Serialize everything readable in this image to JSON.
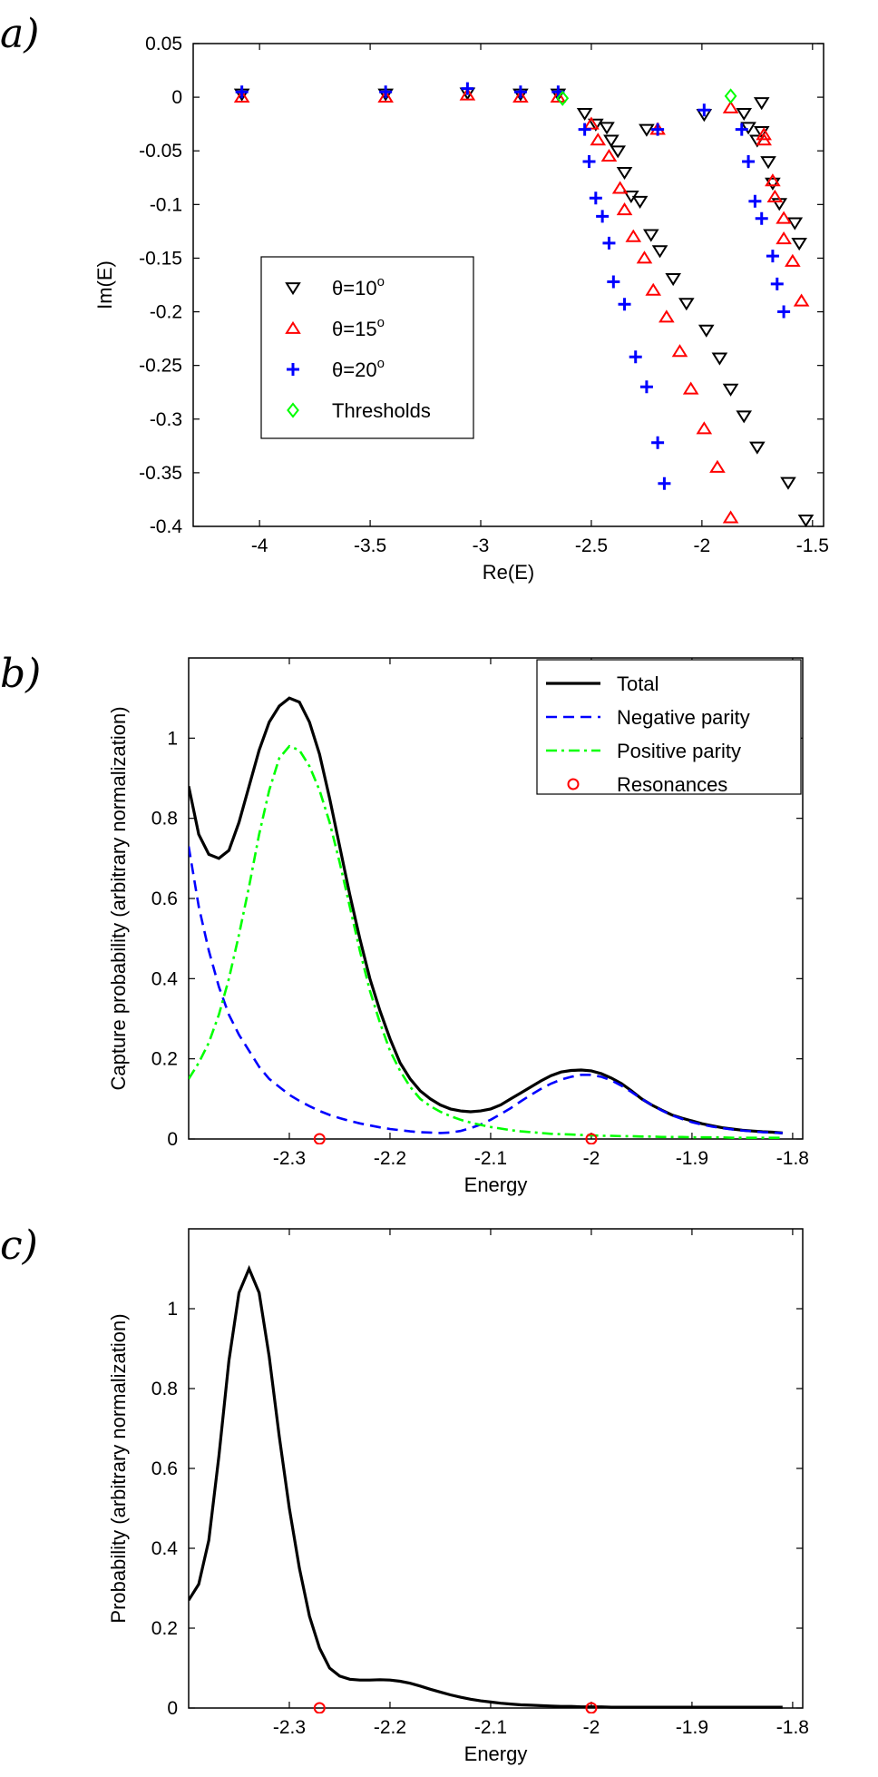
{
  "chart_data": [
    {
      "panel": "a)",
      "type": "scatter",
      "xlabel": "Re(E)",
      "ylabel": "Im(E)",
      "xlim": [
        -4.3,
        -1.45
      ],
      "ylim": [
        -0.4,
        0.05
      ],
      "xticks": [
        -4,
        -3.5,
        -3,
        -2.5,
        -2,
        -1.5
      ],
      "yticks": [
        0.05,
        0,
        -0.05,
        -0.1,
        -0.15,
        -0.2,
        -0.25,
        -0.3,
        -0.35,
        -0.4
      ],
      "grid": false,
      "legend_position": "lower-left",
      "series": [
        {
          "name_prefix": "θ=10",
          "name_sup": "o",
          "marker": "triangle-down",
          "color": "#000000",
          "points": [
            [
              -4.08,
              0.003
            ],
            [
              -3.43,
              0.003
            ],
            [
              -3.06,
              0.004
            ],
            [
              -2.82,
              0.003
            ],
            [
              -2.65,
              0.003
            ],
            [
              -2.53,
              -0.015
            ],
            [
              -2.48,
              -0.025
            ],
            [
              -2.43,
              -0.028
            ],
            [
              -2.41,
              -0.04
            ],
            [
              -2.38,
              -0.05
            ],
            [
              -2.35,
              -0.07
            ],
            [
              -2.32,
              -0.092
            ],
            [
              -2.28,
              -0.097
            ],
            [
              -2.25,
              -0.03
            ],
            [
              -2.23,
              -0.128
            ],
            [
              -2.19,
              -0.143
            ],
            [
              -2.13,
              -0.169
            ],
            [
              -2.07,
              -0.192
            ],
            [
              -1.99,
              -0.016
            ],
            [
              -1.98,
              -0.217
            ],
            [
              -1.92,
              -0.243
            ],
            [
              -1.87,
              -0.272
            ],
            [
              -1.81,
              -0.297
            ],
            [
              -1.81,
              -0.015
            ],
            [
              -1.79,
              -0.028
            ],
            [
              -1.75,
              -0.326
            ],
            [
              -1.75,
              -0.04
            ],
            [
              -1.73,
              -0.032
            ],
            [
              -1.73,
              -0.005
            ],
            [
              -1.7,
              -0.06
            ],
            [
              -1.68,
              -0.08
            ],
            [
              -1.65,
              -0.099
            ],
            [
              -1.61,
              -0.359
            ],
            [
              -1.58,
              -0.117
            ],
            [
              -1.56,
              -0.136
            ],
            [
              -1.53,
              -0.394
            ]
          ]
        },
        {
          "name_prefix": "θ=15",
          "name_sup": "o",
          "marker": "triangle-up",
          "color": "#ff0000",
          "points": [
            [
              -4.08,
              0.0
            ],
            [
              -3.43,
              0.0
            ],
            [
              -3.06,
              0.002
            ],
            [
              -2.82,
              0.0
            ],
            [
              -2.65,
              0.0
            ],
            [
              -2.5,
              -0.025
            ],
            [
              -2.47,
              -0.04
            ],
            [
              -2.42,
              -0.055
            ],
            [
              -2.37,
              -0.085
            ],
            [
              -2.35,
              -0.105
            ],
            [
              -2.31,
              -0.13
            ],
            [
              -2.26,
              -0.15
            ],
            [
              -2.22,
              -0.18
            ],
            [
              -2.2,
              -0.03
            ],
            [
              -2.16,
              -0.205
            ],
            [
              -2.1,
              -0.237
            ],
            [
              -2.05,
              -0.272
            ],
            [
              -1.99,
              -0.309
            ],
            [
              -1.93,
              -0.345
            ],
            [
              -1.87,
              -0.392
            ],
            [
              -1.87,
              -0.01
            ],
            [
              -1.72,
              -0.035
            ],
            [
              -1.72,
              -0.04
            ],
            [
              -1.68,
              -0.078
            ],
            [
              -1.67,
              -0.093
            ],
            [
              -1.63,
              -0.113
            ],
            [
              -1.63,
              -0.132
            ],
            [
              -1.59,
              -0.153
            ],
            [
              -1.55,
              -0.19
            ]
          ]
        },
        {
          "name_prefix": "θ=20",
          "name_sup": "o",
          "marker": "plus",
          "color": "#0000ff",
          "points": [
            [
              -4.08,
              0.005
            ],
            [
              -3.43,
              0.005
            ],
            [
              -3.06,
              0.008
            ],
            [
              -2.82,
              0.005
            ],
            [
              -2.65,
              0.005
            ],
            [
              -2.53,
              -0.03
            ],
            [
              -2.51,
              -0.06
            ],
            [
              -2.48,
              -0.094
            ],
            [
              -2.45,
              -0.111
            ],
            [
              -2.42,
              -0.136
            ],
            [
              -2.4,
              -0.172
            ],
            [
              -2.35,
              -0.193
            ],
            [
              -2.3,
              -0.242
            ],
            [
              -2.25,
              -0.27
            ],
            [
              -2.2,
              -0.322
            ],
            [
              -2.17,
              -0.36
            ],
            [
              -2.2,
              -0.03
            ],
            [
              -1.99,
              -0.012
            ],
            [
              -1.82,
              -0.03
            ],
            [
              -1.79,
              -0.06
            ],
            [
              -1.76,
              -0.097
            ],
            [
              -1.73,
              -0.113
            ],
            [
              -1.68,
              -0.148
            ],
            [
              -1.66,
              -0.174
            ],
            [
              -1.63,
              -0.2
            ]
          ]
        },
        {
          "name": "Thresholds",
          "marker": "diamond",
          "color": "#00ff00",
          "points": [
            [
              -2.63,
              -0.001
            ],
            [
              -1.87,
              0.001
            ]
          ]
        }
      ]
    },
    {
      "panel": "b)",
      "type": "line",
      "xlabel": "Energy",
      "ylabel": "Capture probability (arbitrary normalization)",
      "xlim": [
        -2.4,
        -1.79
      ],
      "ylim": [
        0,
        1.2
      ],
      "xticks": [
        -2.3,
        -2.2,
        -2.1,
        -2.0,
        -1.9,
        -1.8
      ],
      "xtick_labels": [
        "-2.3",
        "-2.2",
        "-2.1",
        "-2",
        "-1.9",
        "-1.8"
      ],
      "yticks": [
        0,
        0.2,
        0.4,
        0.6,
        0.8,
        1
      ],
      "ytick_labels": [
        "0",
        "0.2",
        "0.4",
        "0.6",
        "0.8",
        "1"
      ],
      "grid": false,
      "legend_position": "top-right",
      "series": [
        {
          "name": "Total",
          "style": "solid",
          "color": "#000000",
          "x": [
            -2.4,
            -2.39,
            -2.38,
            -2.37,
            -2.36,
            -2.35,
            -2.34,
            -2.33,
            -2.32,
            -2.31,
            -2.3,
            -2.29,
            -2.28,
            -2.27,
            -2.26,
            -2.25,
            -2.24,
            -2.23,
            -2.22,
            -2.21,
            -2.2,
            -2.19,
            -2.18,
            -2.17,
            -2.16,
            -2.15,
            -2.14,
            -2.13,
            -2.12,
            -2.11,
            -2.1,
            -2.09,
            -2.08,
            -2.07,
            -2.06,
            -2.05,
            -2.04,
            -2.03,
            -2.02,
            -2.01,
            -2.0,
            -1.99,
            -1.98,
            -1.97,
            -1.96,
            -1.95,
            -1.94,
            -1.93,
            -1.92,
            -1.91,
            -1.9,
            -1.89,
            -1.88,
            -1.87,
            -1.86,
            -1.85,
            -1.84,
            -1.83,
            -1.82,
            -1.81
          ],
          "y": [
            0.88,
            0.76,
            0.71,
            0.7,
            0.72,
            0.79,
            0.88,
            0.97,
            1.04,
            1.08,
            1.1,
            1.09,
            1.04,
            0.96,
            0.85,
            0.73,
            0.61,
            0.5,
            0.4,
            0.32,
            0.25,
            0.19,
            0.15,
            0.12,
            0.1,
            0.085,
            0.075,
            0.07,
            0.068,
            0.07,
            0.075,
            0.085,
            0.1,
            0.115,
            0.13,
            0.145,
            0.158,
            0.167,
            0.171,
            0.172,
            0.17,
            0.163,
            0.152,
            0.138,
            0.12,
            0.1,
            0.085,
            0.072,
            0.06,
            0.052,
            0.045,
            0.038,
            0.033,
            0.028,
            0.025,
            0.022,
            0.02,
            0.018,
            0.017,
            0.015
          ]
        },
        {
          "name": "Negative parity",
          "style": "dashed",
          "color": "#0000ff",
          "x": [
            -2.4,
            -2.39,
            -2.38,
            -2.37,
            -2.36,
            -2.35,
            -2.34,
            -2.33,
            -2.32,
            -2.31,
            -2.3,
            -2.29,
            -2.28,
            -2.27,
            -2.26,
            -2.25,
            -2.24,
            -2.23,
            -2.22,
            -2.21,
            -2.2,
            -2.19,
            -2.18,
            -2.17,
            -2.16,
            -2.15,
            -2.14,
            -2.13,
            -2.12,
            -2.11,
            -2.1,
            -2.09,
            -2.08,
            -2.07,
            -2.06,
            -2.05,
            -2.04,
            -2.03,
            -2.02,
            -2.01,
            -2.0,
            -1.99,
            -1.98,
            -1.97,
            -1.96,
            -1.95,
            -1.94,
            -1.93,
            -1.92,
            -1.91,
            -1.9,
            -1.89,
            -1.88,
            -1.87,
            -1.86,
            -1.85,
            -1.84,
            -1.83,
            -1.82,
            -1.81
          ],
          "y": [
            0.73,
            0.58,
            0.47,
            0.38,
            0.31,
            0.26,
            0.22,
            0.18,
            0.15,
            0.13,
            0.11,
            0.095,
            0.082,
            0.07,
            0.06,
            0.052,
            0.045,
            0.039,
            0.034,
            0.029,
            0.025,
            0.022,
            0.019,
            0.017,
            0.016,
            0.015,
            0.016,
            0.02,
            0.027,
            0.036,
            0.048,
            0.062,
            0.077,
            0.094,
            0.11,
            0.125,
            0.138,
            0.148,
            0.155,
            0.16,
            0.16,
            0.155,
            0.146,
            0.133,
            0.117,
            0.1,
            0.085,
            0.071,
            0.059,
            0.05,
            0.042,
            0.036,
            0.031,
            0.027,
            0.024,
            0.021,
            0.019,
            0.017,
            0.016,
            0.015
          ]
        },
        {
          "name": "Positive parity",
          "style": "dashdot",
          "color": "#00ff00",
          "x": [
            -2.4,
            -2.39,
            -2.38,
            -2.37,
            -2.36,
            -2.35,
            -2.34,
            -2.33,
            -2.32,
            -2.31,
            -2.3,
            -2.29,
            -2.28,
            -2.27,
            -2.26,
            -2.25,
            -2.24,
            -2.23,
            -2.22,
            -2.21,
            -2.2,
            -2.19,
            -2.18,
            -2.17,
            -2.16,
            -2.15,
            -2.14,
            -2.13,
            -2.12,
            -2.11,
            -2.1,
            -2.09,
            -2.08,
            -2.07,
            -2.06,
            -2.05,
            -2.04,
            -2.03,
            -2.02,
            -2.01,
            -2.0,
            -1.99,
            -1.98,
            -1.97,
            -1.96,
            -1.95,
            -1.94,
            -1.93,
            -1.92,
            -1.91,
            -1.9,
            -1.89,
            -1.88,
            -1.87,
            -1.86,
            -1.85,
            -1.84,
            -1.83,
            -1.82,
            -1.81
          ],
          "y": [
            0.15,
            0.19,
            0.24,
            0.31,
            0.4,
            0.51,
            0.63,
            0.76,
            0.87,
            0.95,
            0.98,
            0.97,
            0.93,
            0.87,
            0.79,
            0.69,
            0.58,
            0.47,
            0.37,
            0.29,
            0.22,
            0.17,
            0.13,
            0.1,
            0.082,
            0.068,
            0.057,
            0.048,
            0.041,
            0.035,
            0.03,
            0.026,
            0.022,
            0.019,
            0.017,
            0.015,
            0.013,
            0.012,
            0.011,
            0.01,
            0.009,
            0.008,
            0.008,
            0.007,
            0.007,
            0.006,
            0.006,
            0.005,
            0.005,
            0.005,
            0.004,
            0.004,
            0.004,
            0.004,
            0.003,
            0.003,
            0.003,
            0.003,
            0.003,
            0.003
          ]
        },
        {
          "name": "Resonances",
          "style": "circle-marker",
          "color": "#ff0000",
          "x": [
            -2.27,
            -2.0
          ],
          "y": [
            0,
            0
          ]
        }
      ]
    },
    {
      "panel": "c)",
      "type": "line",
      "xlabel": "Energy",
      "ylabel": "Probability (arbitrary normalization)",
      "xlim": [
        -2.4,
        -1.79
      ],
      "ylim": [
        0,
        1.2
      ],
      "xticks": [
        -2.3,
        -2.2,
        -2.1,
        -2.0,
        -1.9,
        -1.8
      ],
      "xtick_labels": [
        "-2.3",
        "-2.2",
        "-2.1",
        "-2",
        "-1.9",
        "-1.8"
      ],
      "yticks": [
        0,
        0.2,
        0.4,
        0.6,
        0.8,
        1
      ],
      "ytick_labels": [
        "0",
        "0.2",
        "0.4",
        "0.6",
        "0.8",
        "1"
      ],
      "grid": false,
      "series": [
        {
          "name": "",
          "style": "solid",
          "color": "#000000",
          "x": [
            -2.4,
            -2.39,
            -2.38,
            -2.37,
            -2.36,
            -2.35,
            -2.34,
            -2.33,
            -2.32,
            -2.31,
            -2.3,
            -2.29,
            -2.28,
            -2.27,
            -2.26,
            -2.25,
            -2.24,
            -2.23,
            -2.22,
            -2.21,
            -2.2,
            -2.19,
            -2.18,
            -2.17,
            -2.16,
            -2.15,
            -2.14,
            -2.13,
            -2.12,
            -2.11,
            -2.1,
            -2.09,
            -2.08,
            -2.07,
            -2.06,
            -2.05,
            -2.04,
            -2.03,
            -2.02,
            -2.01,
            -2.0,
            -1.99,
            -1.98,
            -1.97,
            -1.96,
            -1.95,
            -1.94,
            -1.93,
            -1.92,
            -1.91,
            -1.9,
            -1.89,
            -1.88,
            -1.87,
            -1.86,
            -1.85,
            -1.84,
            -1.83,
            -1.82,
            -1.81
          ],
          "y": [
            0.27,
            0.31,
            0.42,
            0.63,
            0.87,
            1.04,
            1.1,
            1.04,
            0.88,
            0.68,
            0.5,
            0.35,
            0.23,
            0.15,
            0.1,
            0.08,
            0.072,
            0.07,
            0.07,
            0.071,
            0.07,
            0.067,
            0.062,
            0.055,
            0.047,
            0.04,
            0.033,
            0.027,
            0.022,
            0.018,
            0.015,
            0.012,
            0.01,
            0.008,
            0.007,
            0.006,
            0.005,
            0.004,
            0.004,
            0.003,
            0.003,
            0.003,
            0.002,
            0.002,
            0.002,
            0.002,
            0.002,
            0.002,
            0.002,
            0.002,
            0.002,
            0.002,
            0.002,
            0.002,
            0.002,
            0.002,
            0.002,
            0.002,
            0.002,
            0.002
          ]
        },
        {
          "name": "",
          "style": "circle-marker",
          "color": "#ff0000",
          "x": [
            -2.27,
            -2.0
          ],
          "y": [
            0,
            0
          ]
        }
      ]
    }
  ]
}
